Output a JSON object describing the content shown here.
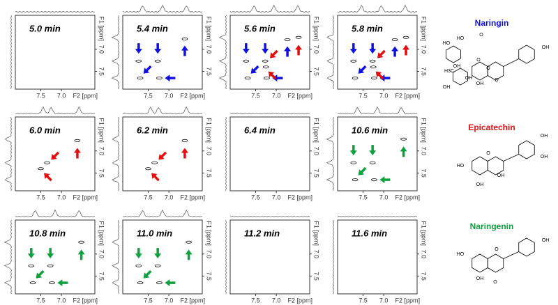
{
  "panels": [
    {
      "label": "5.0 min"
    },
    {
      "label": "5.4 min"
    },
    {
      "label": "5.6 min"
    },
    {
      "label": "5.8 min"
    },
    {
      "label": "6.0 min"
    },
    {
      "label": "6.2 min"
    },
    {
      "label": "6.4 min"
    },
    {
      "label": "10.6 min"
    },
    {
      "label": "10.8 min"
    },
    {
      "label": "11.0 min"
    },
    {
      "label": "11.2 min"
    },
    {
      "label": "11.6 min"
    }
  ],
  "axes": {
    "f2_label": "F2 [ppm]",
    "f1_label": "F1 [ppm]",
    "f2_ticks": [
      "7.5",
      "7.0"
    ],
    "f1_ticks": [
      "7.0",
      "7.5"
    ]
  },
  "compounds": [
    {
      "name": "Naringin",
      "color": "#1010e0",
      "labels": [
        "HO",
        "HO",
        "OH",
        "O",
        "O",
        "H3C",
        "OH",
        "OH",
        "O",
        "OH",
        "O",
        "OH"
      ]
    },
    {
      "name": "Epicatechin",
      "color": "#e01010",
      "labels": [
        "HO",
        "OH",
        "O",
        "OH",
        "OH",
        "OH"
      ]
    },
    {
      "name": "Naringenin",
      "color": "#10a040",
      "labels": [
        "HO",
        "OH",
        "O",
        "O",
        "OH"
      ]
    }
  ]
}
